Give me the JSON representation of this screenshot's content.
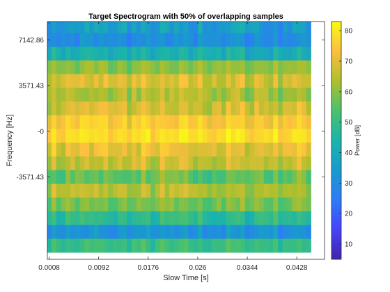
{
  "chart_data": {
    "type": "heatmap",
    "title": "Target Spectrogram with 50% of overlapping samples",
    "xlabel": "Slow Time [s]",
    "ylabel": "Frequency [Hz]",
    "colorbar_label": "Power [dB]",
    "colormap": "parula",
    "xlim": [
      0.0005,
      0.0475
    ],
    "ylim": [
      -10000,
      8571.43
    ],
    "clim": [
      5,
      83
    ],
    "x_ticks": [
      0.0008,
      0.0092,
      0.0176,
      0.026,
      0.0344,
      0.0428
    ],
    "x_tick_labels": [
      "0.0008",
      "0.0092",
      "0.0176",
      "0.026",
      "0.0344",
      "0.0428"
    ],
    "y_ticks": [
      7142.86,
      3571.43,
      0,
      -3571.43
    ],
    "y_tick_labels": [
      "7142.86",
      "3571.43",
      "-0",
      "-3571.43"
    ],
    "colorbar_ticks": [
      10,
      20,
      30,
      40,
      50,
      60,
      70,
      80
    ],
    "colorbar_tick_labels": [
      "10",
      "20",
      "30",
      "40",
      "50",
      "60",
      "70",
      "80"
    ],
    "n_time_bins": 56,
    "time_start": 0.0008,
    "time_step": 0.0008,
    "frequency_bins": [
      8214.29,
      7142.86,
      6071.43,
      5000.0,
      3928.57,
      2857.14,
      1785.71,
      714.29,
      -357.14,
      -1428.57,
      -2500.0,
      -3571.43,
      -4642.86,
      -5714.29,
      -6785.71,
      -7857.14,
      -8928.57
    ],
    "row_base_db": [
      35,
      30,
      42,
      60,
      68,
      63,
      68,
      74,
      78,
      70,
      66,
      56,
      64,
      58,
      48,
      32,
      50
    ],
    "row_variation_db": [
      11,
      8,
      6,
      6,
      7,
      8,
      8,
      5,
      4,
      8,
      7,
      10,
      7,
      7,
      7,
      7,
      5
    ]
  }
}
